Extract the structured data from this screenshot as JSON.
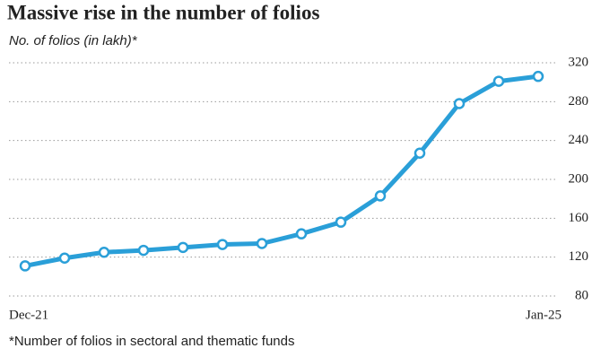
{
  "chart_data": {
    "type": "line",
    "title": "Massive rise in the number of folios",
    "subtitle": "No. of folios (in lakh)*",
    "footnote": "*Number of folios in sectoral and thematic funds",
    "categories": [
      "Dec-21",
      null,
      null,
      null,
      null,
      null,
      null,
      null,
      null,
      null,
      null,
      null,
      null,
      "Jan-25"
    ],
    "series": [
      {
        "name": "Folios",
        "color": "#2a9fd8",
        "values": [
          111,
          119,
          125,
          127,
          130,
          133,
          134,
          144,
          156,
          183,
          227,
          278,
          301,
          306
        ]
      }
    ],
    "ylim": [
      80,
      320
    ],
    "yticks": [
      80,
      120,
      160,
      200,
      240,
      280,
      320
    ],
    "grid": true
  }
}
